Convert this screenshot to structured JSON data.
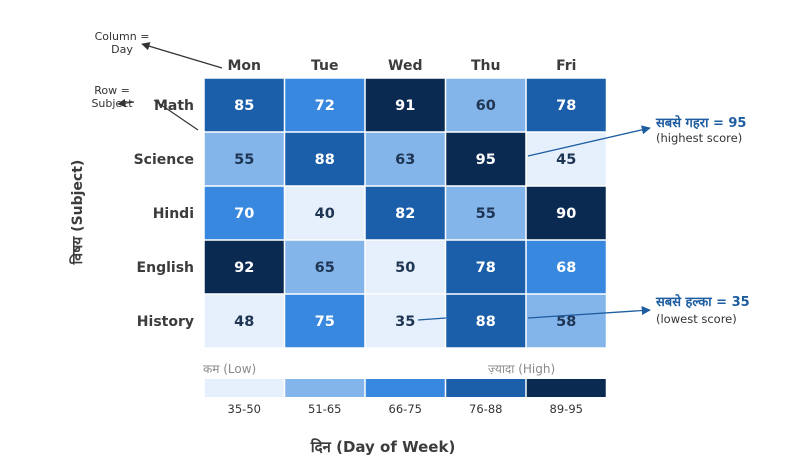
{
  "chart_data": {
    "type": "heatmap",
    "title": "",
    "xlabel": "दिन (Day of Week)",
    "ylabel": "विषय (Subject)",
    "columns": [
      "Mon",
      "Tue",
      "Wed",
      "Thu",
      "Fri"
    ],
    "rows": [
      "Math",
      "Science",
      "Hindi",
      "English",
      "History"
    ],
    "values": [
      [
        85,
        72,
        91,
        60,
        78
      ],
      [
        55,
        88,
        63,
        95,
        45
      ],
      [
        70,
        40,
        82,
        55,
        90
      ],
      [
        92,
        65,
        50,
        78,
        68
      ],
      [
        48,
        75,
        35,
        88,
        58
      ]
    ],
    "color_bins": [
      {
        "label": "35-50",
        "min": 35,
        "max": 50,
        "color": "#e6f0fc",
        "text_color": "#1e3553"
      },
      {
        "label": "51-65",
        "min": 51,
        "max": 65,
        "color": "#84b5ea",
        "text_color": "#1e3553"
      },
      {
        "label": "66-75",
        "min": 66,
        "max": 75,
        "color": "#3888e0",
        "text_color": "#ffffff"
      },
      {
        "label": "76-88",
        "min": 76,
        "max": 88,
        "color": "#1b5fab",
        "text_color": "#ffffff"
      },
      {
        "label": "89-95",
        "min": 89,
        "max": 95,
        "color": "#0b2a52",
        "text_color": "#ffffff"
      }
    ],
    "legend": {
      "low_label": "कम (Low)",
      "high_label": "ज़्यादा (High)",
      "placement": "bottom"
    },
    "annotations": {
      "column_hint": {
        "line1": "Column =",
        "line2": "Day"
      },
      "row_hint": {
        "line1": "Row =",
        "line2": "Subject"
      },
      "highest": {
        "title": "सबसे गहरा = 95",
        "subtitle": "(highest score)",
        "row": 1,
        "col": 3
      },
      "lowest": {
        "title": "सबसे हल्का = 35",
        "subtitle": "(lowest score)",
        "row": 4,
        "col": 2
      }
    }
  }
}
